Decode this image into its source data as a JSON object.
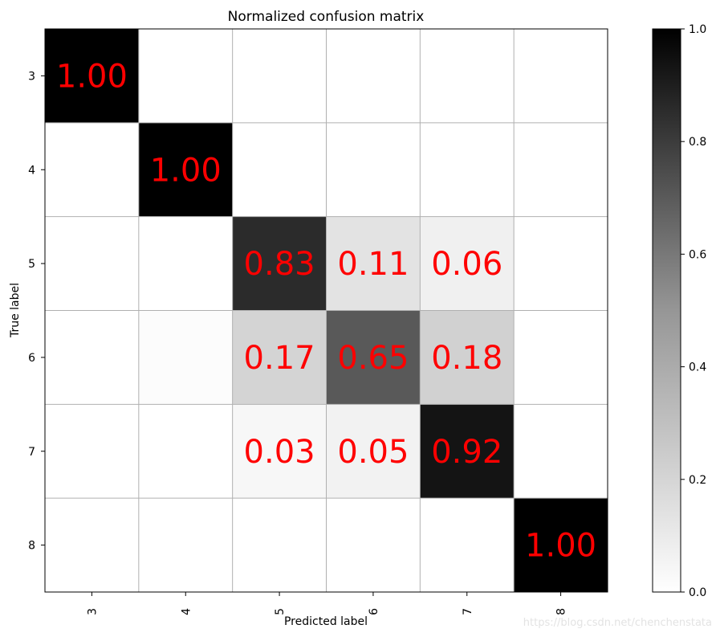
{
  "chart_data": {
    "type": "heatmap",
    "title": "Normalized confusion matrix",
    "xlabel": "Predicted label",
    "ylabel": "True label",
    "x_categories": [
      "3",
      "4",
      "5",
      "6",
      "7",
      "8"
    ],
    "y_categories": [
      "3",
      "4",
      "5",
      "6",
      "7",
      "8"
    ],
    "values": [
      [
        1.0,
        0.0,
        0.0,
        0.0,
        0.0,
        0.0
      ],
      [
        0.0,
        1.0,
        0.0,
        0.0,
        0.0,
        0.0
      ],
      [
        0.0,
        0.0,
        0.83,
        0.11,
        0.06,
        0.0
      ],
      [
        0.0,
        0.01,
        0.17,
        0.65,
        0.18,
        0.0
      ],
      [
        0.0,
        0.0,
        0.03,
        0.05,
        0.92,
        0.0
      ],
      [
        0.0,
        0.0,
        0.0,
        0.0,
        0.0,
        1.0
      ]
    ],
    "cell_labels": [
      [
        "1.00",
        "",
        "",
        "",
        "",
        ""
      ],
      [
        "",
        "1.00",
        "",
        "",
        "",
        ""
      ],
      [
        "",
        "",
        "0.83",
        "0.11",
        "0.06",
        ""
      ],
      [
        "",
        "",
        "0.17",
        "0.65",
        "0.18",
        ""
      ],
      [
        "",
        "",
        "0.03",
        "0.05",
        "0.92",
        ""
      ],
      [
        "",
        "",
        "",
        "",
        "",
        "1.00"
      ]
    ],
    "colormap": "Greys",
    "vmin": 0.0,
    "vmax": 1.0,
    "colorbar_ticks": [
      "0.0",
      "0.2",
      "0.4",
      "0.6",
      "0.8",
      "1.0"
    ],
    "grid": true,
    "label_color": "#ff0000",
    "grid_color": "#b0b0b0"
  },
  "watermark": "https://blog.csdn.net/chenchenstata"
}
